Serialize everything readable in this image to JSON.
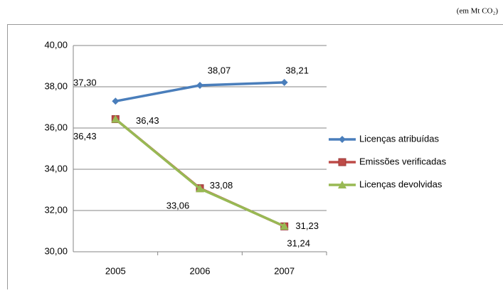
{
  "chart_data": {
    "type": "line",
    "annotation": "(em Mt CO₂)",
    "categories": [
      "2005",
      "2006",
      "2007"
    ],
    "series": [
      {
        "name": "Licenças atribuídas",
        "color": "#4a7ebb",
        "marker": "diamond",
        "values": [
          37.3,
          38.07,
          38.21
        ],
        "value_labels": [
          "37,30",
          "38,07",
          "38,21"
        ]
      },
      {
        "name": "Emissões verificadas",
        "color": "#be4b48",
        "marker": "square",
        "values": [
          36.43,
          33.08,
          31.23
        ],
        "value_labels": [
          "36,43",
          "33,08",
          "31,23"
        ]
      },
      {
        "name": "Licenças devolvidas",
        "color": "#98b954",
        "marker": "triangle",
        "values": [
          36.43,
          33.06,
          31.24
        ],
        "value_labels": [
          "36,43",
          "33,06",
          "31,24"
        ]
      }
    ],
    "ylim": [
      30,
      40
    ],
    "yticks": [
      {
        "value": 30,
        "label": "30,00"
      },
      {
        "value": 32,
        "label": "32,00"
      },
      {
        "value": 34,
        "label": "34,00"
      },
      {
        "value": 36,
        "label": "36,00"
      },
      {
        "value": 38,
        "label": "38,00"
      },
      {
        "value": 40,
        "label": "40,00"
      }
    ],
    "grid": true,
    "legend": "right"
  }
}
